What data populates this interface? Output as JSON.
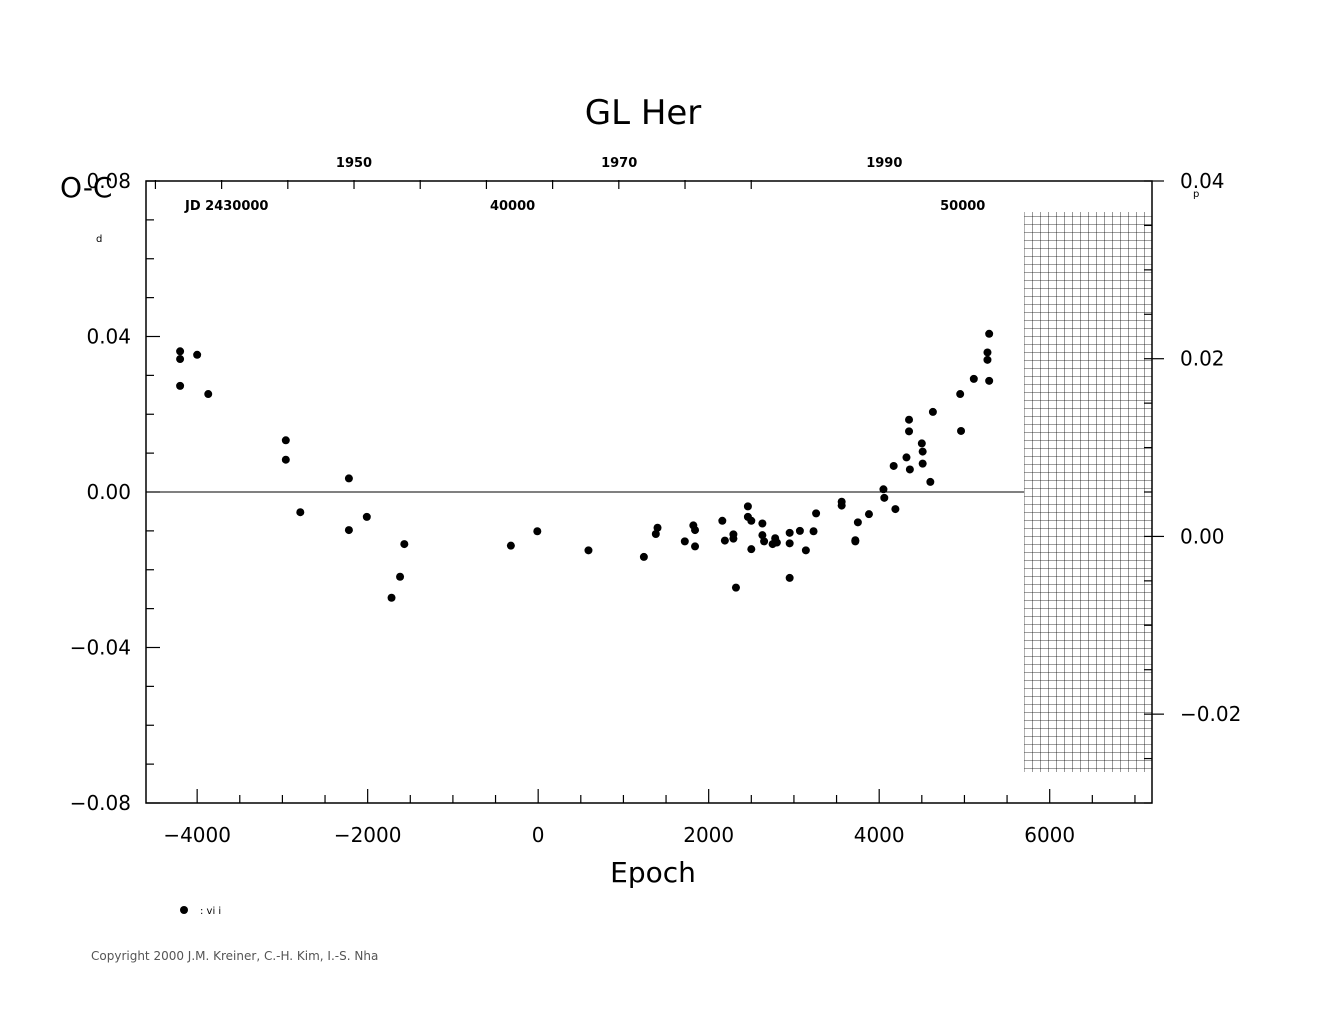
{
  "chart_data": {
    "type": "scatter",
    "title": "GL Her",
    "xlabel": "Epoch",
    "ylabel": "O-C",
    "y_unit": "d",
    "y2_unit": "p",
    "xlim": [
      -4600,
      7200
    ],
    "ylim": [
      -0.08,
      0.08
    ],
    "y2lim": [
      -0.03,
      0.04
    ],
    "x_ticks": [
      -4000,
      -2000,
      0,
      2000,
      4000,
      6000
    ],
    "x_tick_labels": [
      "−4000",
      "−2000",
      "0",
      "2000",
      "4000",
      "6000"
    ],
    "y_ticks": [
      -0.08,
      -0.04,
      0.0,
      0.04,
      0.08
    ],
    "y_tick_labels": [
      "−0.08",
      "−0.04",
      "0.00",
      "0.04",
      "0.08"
    ],
    "y2_ticks": [
      -0.02,
      0.0,
      0.02,
      0.04
    ],
    "y2_tick_labels": [
      "−0.02",
      "0.00",
      "0.02",
      "0.04"
    ],
    "top_year_ticks": [
      {
        "x": -2160,
        "label": "1950"
      },
      {
        "x": 950,
        "label": "1970"
      },
      {
        "x": 4060,
        "label": "1990"
      }
    ],
    "jd_label": "JD  2430000",
    "jd_ticks": [
      {
        "x": -300,
        "label": "40000"
      },
      {
        "x": 4980,
        "label": "50000"
      }
    ],
    "hatched_region": [
      5700,
      7200
    ],
    "zero_line": true,
    "legend": {
      "position": "bottom-left",
      "label": ": vi i"
    },
    "series": [
      {
        "marker": "filled-circle",
        "points": [
          [
            -4200,
            0.0362
          ],
          [
            -4200,
            0.0342
          ],
          [
            -4200,
            0.0273
          ],
          [
            -4000,
            0.0353
          ],
          [
            -3870,
            0.0252
          ],
          [
            -2960,
            0.0133
          ],
          [
            -2960,
            0.0083
          ],
          [
            -2790,
            -0.0052
          ],
          [
            -2220,
            0.0035
          ],
          [
            -2220,
            -0.0098
          ],
          [
            -2010,
            -0.0064
          ],
          [
            -1720,
            -0.0272
          ],
          [
            -1620,
            -0.0218
          ],
          [
            -1570,
            -0.0134
          ],
          [
            -320,
            -0.0138
          ],
          [
            -10,
            -0.0101
          ],
          [
            590,
            -0.015
          ],
          [
            1240,
            -0.0167
          ],
          [
            1380,
            -0.0108
          ],
          [
            1400,
            -0.0092
          ],
          [
            1720,
            -0.0127
          ],
          [
            1820,
            -0.0086
          ],
          [
            1840,
            -0.0098
          ],
          [
            1840,
            -0.014
          ],
          [
            2160,
            -0.0074
          ],
          [
            2190,
            -0.0125
          ],
          [
            2290,
            -0.0109
          ],
          [
            2290,
            -0.012
          ],
          [
            2320,
            -0.0246
          ],
          [
            2460,
            -0.0037
          ],
          [
            2460,
            -0.0064
          ],
          [
            2500,
            -0.0074
          ],
          [
            2500,
            -0.0147
          ],
          [
            2630,
            -0.0081
          ],
          [
            2630,
            -0.0111
          ],
          [
            2650,
            -0.0127
          ],
          [
            2750,
            -0.0134
          ],
          [
            2780,
            -0.0119
          ],
          [
            2800,
            -0.013
          ],
          [
            2950,
            -0.0105
          ],
          [
            2950,
            -0.0132
          ],
          [
            2950,
            -0.0221
          ],
          [
            3070,
            -0.01
          ],
          [
            3140,
            -0.015
          ],
          [
            3230,
            -0.0101
          ],
          [
            3260,
            -0.0055
          ],
          [
            3560,
            -0.0025
          ],
          [
            3560,
            -0.0035
          ],
          [
            3720,
            -0.0124
          ],
          [
            3720,
            -0.0127
          ],
          [
            3750,
            -0.0078
          ],
          [
            3880,
            -0.0057
          ],
          [
            4050,
            0.0007
          ],
          [
            4060,
            -0.0015
          ],
          [
            4170,
            0.0067
          ],
          [
            4190,
            -0.0044
          ],
          [
            4320,
            0.0089
          ],
          [
            4350,
            0.0186
          ],
          [
            4350,
            0.0156
          ],
          [
            4360,
            0.0058
          ],
          [
            4500,
            0.0125
          ],
          [
            4510,
            0.0104
          ],
          [
            4510,
            0.0073
          ],
          [
            4600,
            0.0026
          ],
          [
            4630,
            0.0206
          ],
          [
            4950,
            0.0252
          ],
          [
            4960,
            0.0157
          ],
          [
            5110,
            0.0291
          ],
          [
            5270,
            0.0359
          ],
          [
            5270,
            0.034
          ],
          [
            5290,
            0.0286
          ],
          [
            5290,
            0.0407
          ]
        ]
      }
    ]
  },
  "copyright": "Copyright 2000 J.M. Kreiner, C.-H. Kim, I.-S. Nha"
}
